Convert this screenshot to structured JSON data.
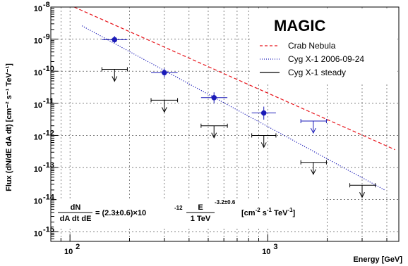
{
  "chart_data": {
    "type": "scatter",
    "title": "MAGIC",
    "xlabel": "Energy [GeV]",
    "ylabel": "Flux (dN/dE dA dt) [cm⁻² s⁻¹ TeV⁻¹]",
    "xscale": "log",
    "yscale": "log",
    "xlim": [
      80,
      4600
    ],
    "ylim": [
      5e-16,
      1e-08
    ],
    "grid": true,
    "legend_position": "top-right",
    "x_tick_labels": [
      "10",
      "10"
    ],
    "x_tick_label_exponents": [
      "2",
      "3"
    ],
    "y_tick_labels": [
      "10",
      "10",
      "10",
      "10",
      "10",
      "10",
      "10",
      "10"
    ],
    "y_tick_label_exponents": [
      "-8",
      "-9",
      "-10",
      "-11",
      "-12",
      "-13",
      "-14",
      "-15"
    ],
    "series": [
      {
        "name": "Crab Nebula",
        "kind": "dashed-line",
        "color": "#e8131a",
        "x": [
          105,
          4400
        ],
        "y": [
          1e-08,
          3.6e-13
        ]
      },
      {
        "name": "Cyg X-1 2006-09-24",
        "kind": "dotted-line-with-points",
        "color": "#1b1bb8",
        "x": [
          115,
          3900
        ],
        "y": [
          2.6e-09,
          2e-14
        ],
        "points": [
          {
            "x": 168,
            "y": 9.6e-10,
            "y_err": [
              7.6e-10,
              1.25e-09
            ],
            "x_err": [
              145,
              195
            ]
          },
          {
            "x": 300,
            "y": 9e-11,
            "y_err": [
              6.5e-11,
              1.22e-10
            ],
            "x_err": [
              257,
              350
            ]
          },
          {
            "x": 535,
            "y": 1.5e-11,
            "y_err": [
              1e-11,
              2.2e-11
            ],
            "x_err": [
              460,
              625
            ]
          },
          {
            "x": 955,
            "y": 5e-12,
            "y_err": [
              3.1e-12,
              7.9e-12
            ],
            "x_err": [
              830,
              1100
            ]
          }
        ]
      },
      {
        "name": "Cyg X-1 steady",
        "kind": "upper-limits",
        "color": "#000000",
        "points": [
          {
            "x": 168,
            "y": 1.15e-10,
            "x_err": [
              145,
              195
            ]
          },
          {
            "x": 300,
            "y": 1.25e-11,
            "x_err": [
              257,
              350
            ]
          },
          {
            "x": 535,
            "y": 2e-12,
            "x_err": [
              460,
              625
            ]
          },
          {
            "x": 955,
            "y": 1e-12,
            "x_err": [
              830,
              1100
            ]
          },
          {
            "x": 1700,
            "y": 1.45e-13,
            "x_err": [
              1470,
              1980
            ]
          },
          {
            "x": 3000,
            "y": 2.8e-14,
            "x_err": [
              2600,
              3500
            ]
          }
        ]
      },
      {
        "name": "Cyg X-1 2006-09-24 upper limit",
        "kind": "upper-limits",
        "color": "#1b1bb8",
        "points": [
          {
            "x": 1700,
            "y": 2.8e-12,
            "x_err": [
              1470,
              1980
            ]
          }
        ]
      }
    ]
  },
  "formula": {
    "frac1_num": "dN",
    "frac1_den": "dA dt dE",
    "eq": "= (2.3±0.6)×10",
    "eq_exp": "-12",
    "frac2_num": "E",
    "frac2_den": "1 TeV",
    "frac2_exp": "-3.2±0.6",
    "units": "[cm",
    "units_exp1": "-2",
    "units_mid": " s",
    "units_exp2": "-1",
    "units_end": " TeV",
    "units_exp3": "-1",
    "units_close": "]"
  }
}
